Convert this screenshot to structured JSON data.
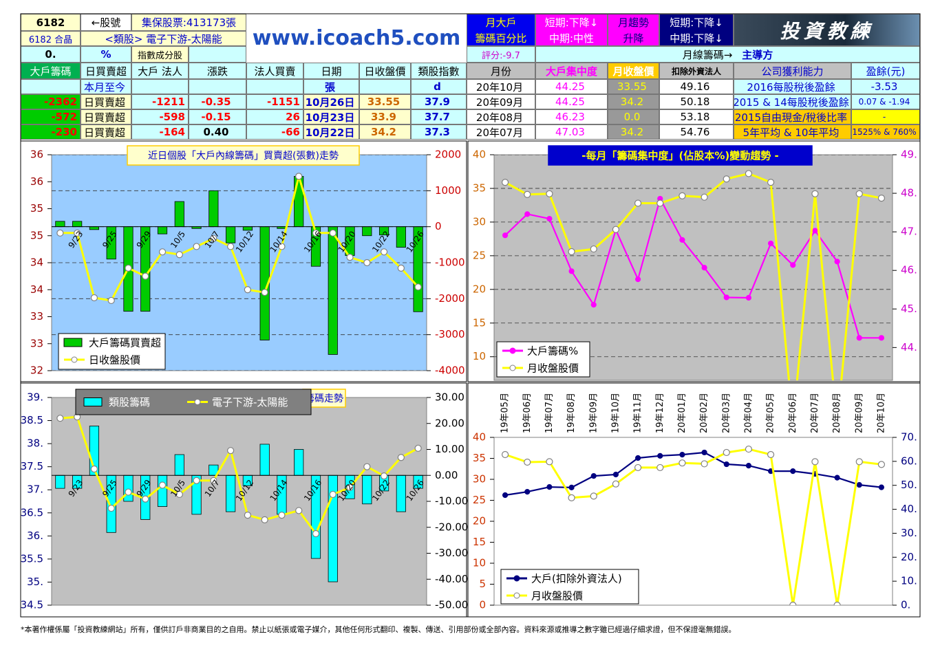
{
  "header": {
    "stock_code": "6182",
    "code_arrow": "←股號",
    "custody": "集保股票:413173張",
    "name": "6182 合晶",
    "sector": "<類股> 電子下游-太陽能",
    "pct_value": "0.",
    "pct_unit": "%",
    "index_member": "指數成分股",
    "website": "www.icoach5.com",
    "monthly_big_label": [
      "月大戶",
      "籌碼百分比"
    ],
    "monthly_big_trend": [
      "短期:下降↓",
      "中期:中性"
    ],
    "monthly_trend_label": [
      "月趨勢",
      "升降"
    ],
    "monthly_trend": [
      "短期:下降↓",
      "中期:下降↓"
    ],
    "brand": "投資教練",
    "score": "評分:-9.7",
    "monthly_chip": "月線籌碼→",
    "leader": "主導方"
  },
  "table": {
    "columns": [
      "大戶籌碼",
      "日買賣超",
      "大戶 法人",
      "漲跌",
      "法人買賣",
      "日期",
      "日收盤價",
      "類股指數",
      "月份",
      "大戶集中度",
      "月收盤價",
      "扣除外資法人",
      "公司獲利能力",
      "盈餘(元)"
    ],
    "rows": [
      [
        null,
        "本月至今",
        null,
        null,
        null,
        "張",
        null,
        "d",
        "20年10月",
        "44.25",
        "33.55",
        "49.16",
        "2016每股稅後盈餘",
        "-3.53"
      ],
      [
        "-2362",
        "日買賣超",
        "-1211",
        "-0.35",
        "-1151",
        "10月26日",
        "33.55",
        "37.9",
        "20年09月",
        "44.25",
        "34.2",
        "50.18",
        "2015 & 14每股稅後盈餘",
        "0.07 & -1.94"
      ],
      [
        "-572",
        "日買賣超",
        "-598",
        "-0.15",
        "26",
        "10月23日",
        "33.9",
        "37.7",
        "20年08月",
        "46.23",
        "0.0",
        "53.18",
        "2015自由現金/稅後比率",
        "-"
      ],
      [
        "-230",
        "日買賣超",
        "-164",
        "0.40",
        "-66",
        "10月22日",
        "34.2",
        "37.3",
        "20年07月",
        "47.03",
        "34.2",
        "54.76",
        "5年平均 & 10年平均",
        "1525% & 760%"
      ]
    ]
  },
  "chart_data": [
    {
      "type": "combo",
      "title": "近日個股「大戶內線籌碼」買賣超(張數)走勢",
      "categories": [
        null,
        "9/23",
        null,
        "9/25",
        null,
        "9/29",
        null,
        "10/5",
        null,
        "10/7",
        null,
        "10/12",
        null,
        "10/14",
        null,
        "10/16",
        null,
        "10/20",
        null,
        "10/22",
        null,
        "10/26"
      ],
      "series": [
        {
          "name": "大戶籌碼買賣超",
          "type": "bar",
          "axis": "y2",
          "color": "#00cc00",
          "values": [
            150,
            150,
            -80,
            -900,
            -2350,
            -2350,
            -200,
            700,
            -50,
            1000,
            -450,
            -100,
            -3150,
            -50,
            1400,
            -1100,
            -3550,
            -800,
            -250,
            -230,
            -572,
            -2362
          ]
        },
        {
          "name": "日收盤股價",
          "type": "line",
          "axis": "y",
          "color": "#ffff00",
          "values": [
            34.55,
            34.55,
            33.35,
            33.3,
            33.9,
            33.75,
            34.2,
            34.15,
            34.3,
            34.45,
            34.3,
            33.5,
            33.45,
            34.3,
            35.6,
            34.55,
            34.55,
            34.1,
            34.0,
            34.2,
            33.9,
            33.55
          ]
        }
      ],
      "ylim": [
        32,
        36
      ],
      "yticks": [
        32,
        {
          "value": 32.5,
          "label": "33"
        },
        33,
        {
          "value": 33.5,
          "label": "34"
        },
        34,
        {
          "value": 34.5,
          "label": "35"
        },
        35,
        {
          "value": 35.5,
          "label": "36"
        },
        36
      ],
      "y2lim": [
        -4000,
        2000
      ],
      "y2ticks": [
        -4000,
        -3000,
        -2000,
        -1000,
        0,
        1000,
        2000
      ],
      "grid": "y2"
    },
    {
      "type": "combo",
      "title": "-每月「籌碼集中度」(佔股本%)變動趨勢 -",
      "series": [
        {
          "name": "大戶籌碼%",
          "type": "line",
          "axis": "y2",
          "color": "#ff00ff",
          "values": [
            46.91,
            47.46,
            47.34,
            45.98,
            45.11,
            47.05,
            45.77,
            47.86,
            46.79,
            46.07,
            45.3,
            45.29,
            46.7,
            46.14,
            47.03,
            46.23,
            44.25,
            44.25
          ]
        },
        {
          "name": "月收盤股價",
          "type": "line",
          "axis": "y",
          "color": "#ffff00",
          "values": [
            35.9,
            34.1,
            34.2,
            25.6,
            26.0,
            28.9,
            32.8,
            32.8,
            33.9,
            33.7,
            36.4,
            37.2,
            35.9,
            0,
            34.2,
            0,
            34.2,
            33.55
          ]
        }
      ],
      "ylim": [
        6.5,
        40
      ],
      "yticks": [
        10,
        15,
        20,
        25,
        30,
        35,
        40
      ],
      "y2lim": [
        43.15,
        49
      ],
      "y2ticks": [
        {
          "value": 44,
          "label": "44."
        },
        {
          "value": 45,
          "label": "45."
        },
        {
          "value": 46,
          "label": "46."
        },
        {
          "value": 47,
          "label": "47."
        },
        {
          "value": 48,
          "label": "48."
        },
        {
          "value": 49,
          "label": "49."
        }
      ],
      "grid": "y"
    },
    {
      "type": "combo",
      "title": "籌碼走勢",
      "categories": [
        null,
        "9/23",
        null,
        "9/25",
        null,
        "9/29",
        null,
        "10/5",
        null,
        "10/7",
        null,
        "10/12",
        null,
        "10/14",
        null,
        "10/16",
        null,
        "10/20",
        null,
        "10/22",
        null,
        "10/26"
      ],
      "series": [
        {
          "name": "類股籌碼",
          "type": "bar",
          "axis": "y2",
          "color": "#00ffff",
          "values": [
            -5,
            -5,
            19,
            -22,
            -10,
            -17,
            -12,
            8,
            -15,
            4,
            -14,
            -4,
            12,
            -15,
            10,
            -32,
            -41,
            -9,
            -11,
            -6,
            -14,
            -5
          ]
        },
        {
          "name": "電子下游-太陽能",
          "type": "line",
          "axis": "y",
          "color": "#ffff00",
          "values": [
            38.55,
            38.58,
            37.45,
            36.6,
            36.95,
            36.8,
            37.1,
            36.9,
            37.2,
            37.2,
            37.85,
            36.45,
            36.35,
            36.45,
            36.55,
            36.05,
            36.9,
            37.05,
            37.5,
            37.3,
            37.7,
            37.9
          ]
        }
      ],
      "ylim": [
        34.5,
        39
      ],
      "yticks": [
        34.5,
        {
          "value": 35,
          "label": "35."
        },
        35.5,
        {
          "value": 36,
          "label": "36."
        },
        36.5,
        {
          "value": 37,
          "label": "37."
        },
        37.5,
        {
          "value": 38,
          "label": "38."
        },
        38.5,
        {
          "value": 39,
          "label": "39."
        }
      ],
      "y2lim": [
        -50,
        30
      ],
      "y2ticks": [
        {
          "value": -50,
          "label": "-50.00"
        },
        {
          "value": -40,
          "label": "-40.00"
        },
        {
          "value": -30,
          "label": "-30.00"
        },
        {
          "value": -20,
          "label": "-20.00"
        },
        {
          "value": -10,
          "label": "-10.00"
        },
        {
          "value": 0,
          "label": "0.00"
        },
        {
          "value": 10,
          "label": "10.00"
        },
        {
          "value": 20,
          "label": "20.00"
        },
        {
          "value": 30,
          "label": "30.00"
        }
      ]
    },
    {
      "type": "combo",
      "categories": [
        "19年05月",
        "19年06月",
        "19年07月",
        "19年08月",
        "19年09月",
        "19年10月",
        "19年11月",
        "19年12月",
        "20年01月",
        "20年02月",
        "20年03月",
        "20年04月",
        "20年05月",
        "20年06月",
        "20年07月",
        "20年08月",
        "20年09月",
        "20年10月"
      ],
      "series": [
        {
          "name": "大戶(扣除外資法人)",
          "type": "line",
          "axis": "y2",
          "color": "#000080",
          "values": [
            45.9,
            47.3,
            49.3,
            49.1,
            53.9,
            54.5,
            61.4,
            62.3,
            62.8,
            63.7,
            58.8,
            58.2,
            55.9,
            55.9,
            54.76,
            53.18,
            50.18,
            49.16
          ]
        },
        {
          "name": "月收盤股價",
          "type": "line",
          "axis": "y",
          "color": "#ffff00",
          "values": [
            35.9,
            34.1,
            34.2,
            25.6,
            26.0,
            28.9,
            32.8,
            32.8,
            33.9,
            33.7,
            36.4,
            37.2,
            35.9,
            0,
            34.2,
            0,
            34.2,
            33.55
          ]
        }
      ],
      "ylim": [
        0,
        40
      ],
      "yticks": [
        0,
        5,
        10,
        15,
        20,
        25,
        30,
        35,
        40
      ],
      "y2lim": [
        0,
        70
      ],
      "y2ticks": [
        {
          "value": 0,
          "label": "0."
        },
        {
          "value": 10,
          "label": "10."
        },
        {
          "value": 20,
          "label": "20."
        },
        {
          "value": 30,
          "label": "30."
        },
        {
          "value": 40,
          "label": "40."
        },
        {
          "value": 50,
          "label": "50."
        },
        {
          "value": 60,
          "label": "60."
        },
        {
          "value": 70,
          "label": "70."
        }
      ]
    }
  ],
  "footer": "*本著作權係屬「投資教練網站」所有，僅供訂戶非商業目的之自用。禁止以紙張或電子媒介，其他任何形式翻印、複製、傳送、引用部份或全部內容。資料來源或推導之數字雖已經過仔細求證，但不保證毫無錯誤。"
}
